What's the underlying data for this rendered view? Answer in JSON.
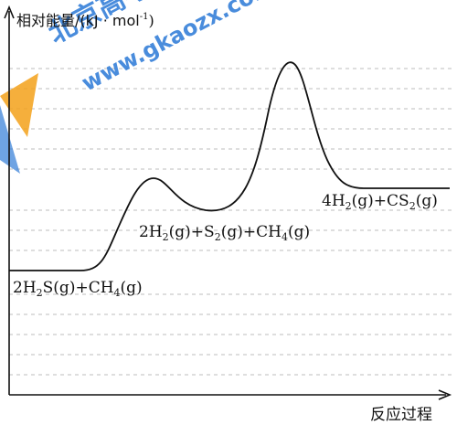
{
  "axes": {
    "y_label": "相对能量/(kJ · mol",
    "y_label_sup": "-1",
    "y_label_close": ")",
    "x_label": "反应过程"
  },
  "states": [
    {
      "name": "reactants",
      "parts": [
        {
          "t": "2H"
        },
        {
          "t": "2",
          "sub": true
        },
        {
          "t": "S(g)+CH"
        },
        {
          "t": "4",
          "sub": true
        },
        {
          "t": "(g)"
        }
      ]
    },
    {
      "name": "intermediate",
      "parts": [
        {
          "t": "2H"
        },
        {
          "t": "2",
          "sub": true
        },
        {
          "t": "(g)+S"
        },
        {
          "t": "2",
          "sub": true
        },
        {
          "t": "(g)+CH"
        },
        {
          "t": "4",
          "sub": true
        },
        {
          "t": "(g)"
        }
      ]
    },
    {
      "name": "products",
      "parts": [
        {
          "t": "4H"
        },
        {
          "t": "2",
          "sub": true
        },
        {
          "t": "(g)+CS"
        },
        {
          "t": "2",
          "sub": true
        },
        {
          "t": "(g)"
        }
      ]
    }
  ],
  "watermark": {
    "text": "www.gkaozx.com",
    "brand": "北京高考在线"
  },
  "colors": {
    "axis": "#111111",
    "curve": "#111111",
    "gridline": "#bdbdbd",
    "watermark_blue": "#2a78d6",
    "watermark_orange": "#f4a21b"
  }
}
